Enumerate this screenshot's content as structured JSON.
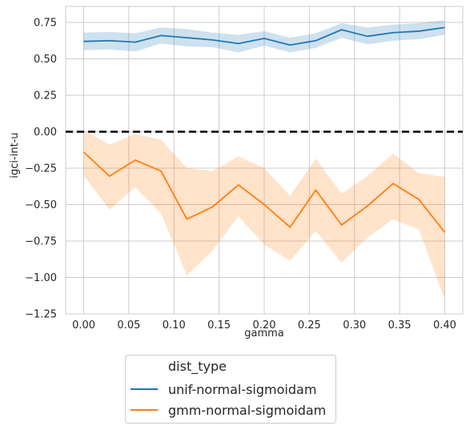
{
  "chart_data": {
    "type": "line",
    "title": "",
    "xlabel": "gamma",
    "ylabel": "igci-int-u",
    "xlim": [
      -0.02,
      0.42
    ],
    "ylim": [
      -1.25,
      0.86
    ],
    "x_ticks": [
      0.0,
      0.05,
      0.1,
      0.15,
      0.2,
      0.25,
      0.3,
      0.35,
      0.4
    ],
    "x_tick_labels": [
      "0.00",
      "0.05",
      "0.10",
      "0.15",
      "0.20",
      "0.25",
      "0.30",
      "0.35",
      "0.40"
    ],
    "y_ticks": [
      -1.25,
      -1.0,
      -0.75,
      -0.5,
      -0.25,
      0.0,
      0.25,
      0.5,
      0.75
    ],
    "y_tick_labels": [
      "−1.25",
      "−1.00",
      "−0.75",
      "−0.50",
      "−0.25",
      "0.00",
      "0.25",
      "0.50",
      "0.75"
    ],
    "grid": true,
    "reference_line": {
      "y": 0.0,
      "style": "dashed",
      "color": "#000000"
    },
    "x": [
      0.0,
      0.0286,
      0.0571,
      0.0857,
      0.1143,
      0.1429,
      0.1714,
      0.2,
      0.2286,
      0.2571,
      0.2857,
      0.3143,
      0.3429,
      0.3714,
      0.4
    ],
    "series": [
      {
        "name": "unif-normal-sigmoidam",
        "color": "#1f77b4",
        "values": [
          0.62,
          0.625,
          0.615,
          0.66,
          0.645,
          0.63,
          0.605,
          0.64,
          0.595,
          0.625,
          0.7,
          0.655,
          0.68,
          0.69,
          0.715
        ],
        "ci_lower": [
          0.56,
          0.565,
          0.55,
          0.605,
          0.585,
          0.58,
          0.545,
          0.59,
          0.545,
          0.575,
          0.645,
          0.6,
          0.625,
          0.635,
          0.665
        ],
        "ci_upper": [
          0.68,
          0.685,
          0.675,
          0.715,
          0.705,
          0.68,
          0.665,
          0.69,
          0.645,
          0.675,
          0.745,
          0.715,
          0.735,
          0.745,
          0.765
        ]
      },
      {
        "name": "gmm-normal-sigmoidam",
        "color": "#ff7f0e",
        "values": [
          -0.14,
          -0.305,
          -0.195,
          -0.27,
          -0.6,
          -0.515,
          -0.365,
          -0.5,
          -0.655,
          -0.4,
          -0.64,
          -0.51,
          -0.355,
          -0.465,
          -0.69
        ],
        "ci_lower": [
          -0.3,
          -0.535,
          -0.38,
          -0.56,
          -0.985,
          -0.815,
          -0.58,
          -0.775,
          -0.885,
          -0.68,
          -0.9,
          -0.725,
          -0.6,
          -0.67,
          -1.15
        ],
        "ci_upper": [
          0.01,
          -0.09,
          -0.015,
          -0.055,
          -0.25,
          -0.27,
          -0.17,
          -0.25,
          -0.44,
          -0.185,
          -0.425,
          -0.305,
          -0.15,
          -0.285,
          -0.31
        ]
      }
    ],
    "legend": {
      "title": "dist_type",
      "placement": "below",
      "entries": [
        "unif-normal-sigmoidam",
        "gmm-normal-sigmoidam"
      ]
    }
  }
}
